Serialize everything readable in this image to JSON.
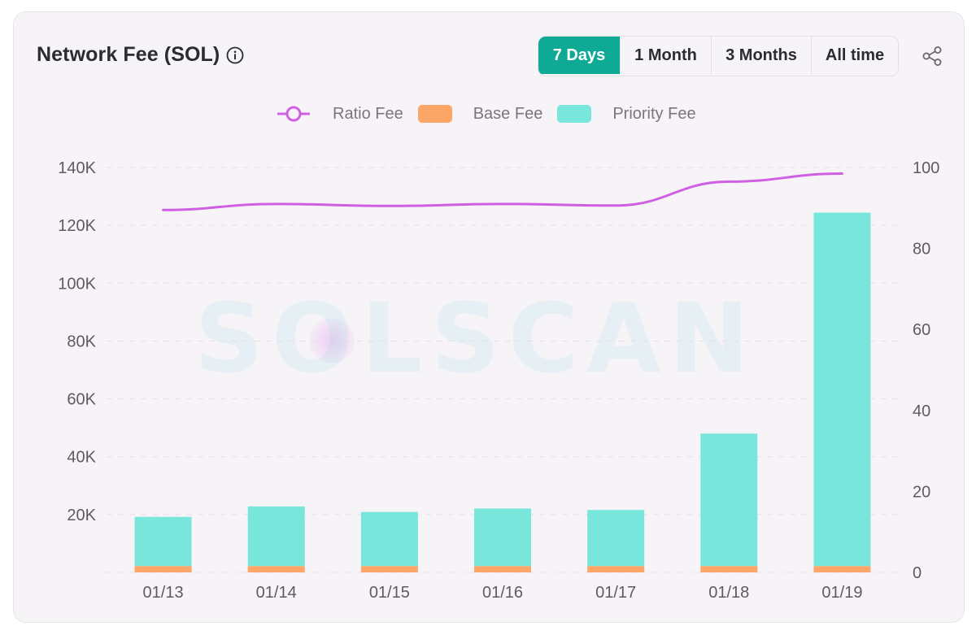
{
  "header": {
    "title": "Network Fee (SOL)",
    "info_icon": "info-icon"
  },
  "range_tabs": [
    {
      "label": "7 Days",
      "active": true
    },
    {
      "label": "1 Month",
      "active": false
    },
    {
      "label": "3 Months",
      "active": false
    },
    {
      "label": "All time",
      "active": false
    }
  ],
  "share_icon": "share-icon",
  "watermark": "SOLSCAN",
  "colors": {
    "ratio_fee": "#cf5fe3",
    "base_fee": "#fda66a",
    "priority_fee": "#78e6da",
    "active_tab": "#0faa95"
  },
  "chart_data": {
    "type": "bar",
    "categories": [
      "01/13",
      "01/14",
      "01/15",
      "01/16",
      "01/17",
      "01/18",
      "01/19"
    ],
    "series": [
      {
        "name": "Base Fee",
        "kind": "bar",
        "axis": "left",
        "stack": "fees",
        "color": "#fda66a",
        "values": [
          2200,
          2200,
          2200,
          2200,
          2200,
          2200,
          2200
        ]
      },
      {
        "name": "Priority Fee",
        "kind": "bar",
        "axis": "left",
        "stack": "fees",
        "color": "#78e6da",
        "values": [
          17000,
          20600,
          18700,
          19900,
          19400,
          45800,
          122200
        ]
      },
      {
        "name": "Ratio Fee",
        "kind": "line",
        "axis": "right",
        "color": "#cf5fe3",
        "values": [
          89.5,
          91.0,
          90.5,
          91.0,
          90.6,
          96.5,
          98.5
        ]
      }
    ],
    "y_left": {
      "min": 0,
      "max": 140000,
      "ticks": [
        "140K",
        "120K",
        "100K",
        "80K",
        "60K",
        "40K",
        "20K"
      ],
      "tick_values": [
        140000,
        120000,
        100000,
        80000,
        60000,
        40000,
        20000
      ]
    },
    "y_right": {
      "min": 0,
      "max": 100,
      "ticks": [
        "100",
        "80",
        "60",
        "40",
        "20",
        "0"
      ],
      "tick_values": [
        100,
        80,
        60,
        40,
        20,
        0
      ]
    },
    "grid": true,
    "legend_position": "top-center"
  }
}
